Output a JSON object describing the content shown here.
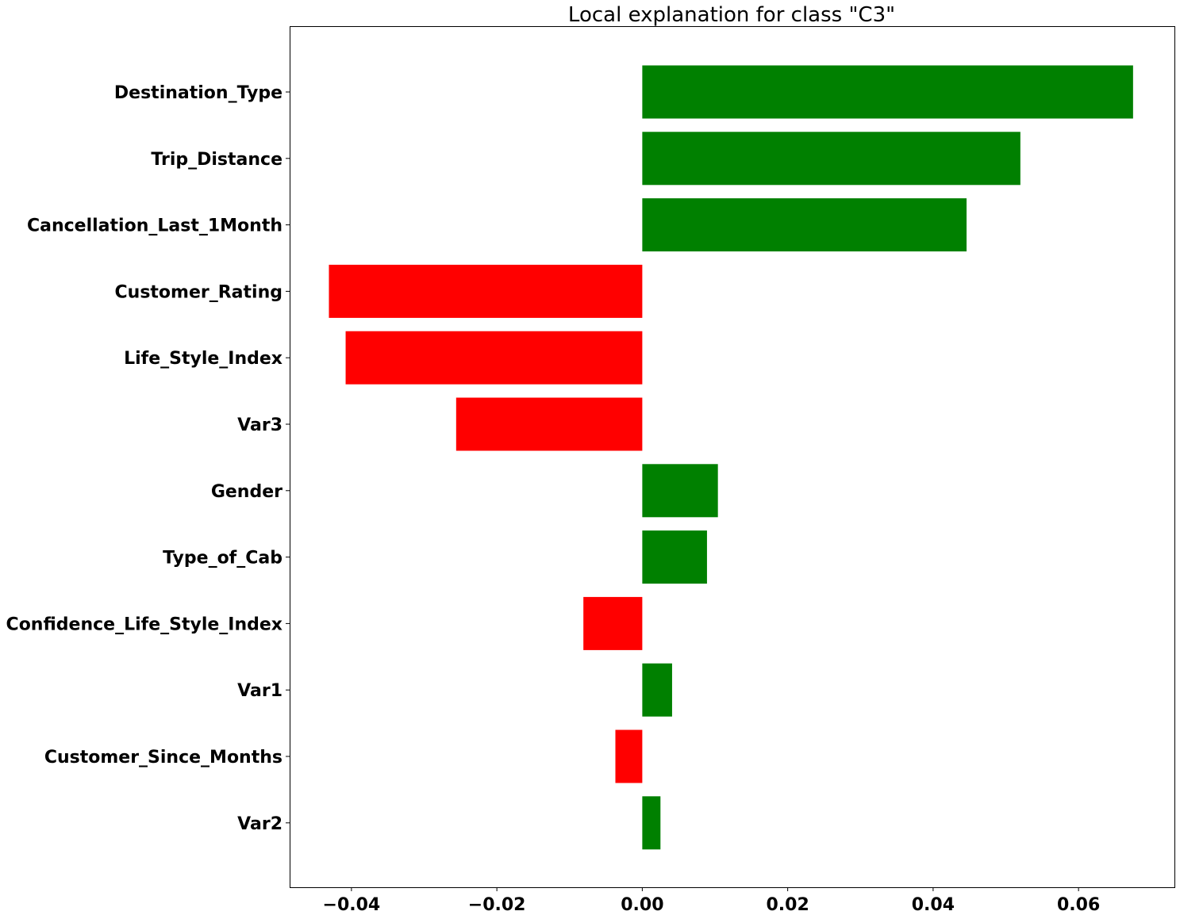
{
  "colors": {
    "positive": "#008000",
    "negative": "#ff0000",
    "axis": "#000000",
    "background": "#ffffff"
  },
  "chart_data": {
    "type": "bar",
    "orientation": "horizontal",
    "title": "Local explanation for class \"C3\"",
    "xlabel": "",
    "ylabel": "",
    "categories": [
      "Destination_Type",
      "Trip_Distance",
      "Cancellation_Last_1Month",
      "Customer_Rating",
      "Life_Style_Index",
      "Var3",
      "Gender",
      "Type_of_Cab",
      "Confidence_Life_Style_Index",
      "Var1",
      "Customer_Since_Months",
      "Var2"
    ],
    "values": [
      0.0675,
      0.052,
      0.0446,
      -0.0431,
      -0.0408,
      -0.0256,
      0.0104,
      0.0089,
      -0.0081,
      0.0041,
      -0.0037,
      0.0025
    ],
    "xlim": [
      -0.0485,
      0.0733
    ],
    "xticks": [
      -0.04,
      -0.02,
      0.0,
      0.02,
      0.04,
      0.06
    ],
    "xtick_labels": [
      "−0.04",
      "−0.02",
      "0.00",
      "0.02",
      "0.04",
      "0.06"
    ],
    "grid": false,
    "legend": "none"
  }
}
